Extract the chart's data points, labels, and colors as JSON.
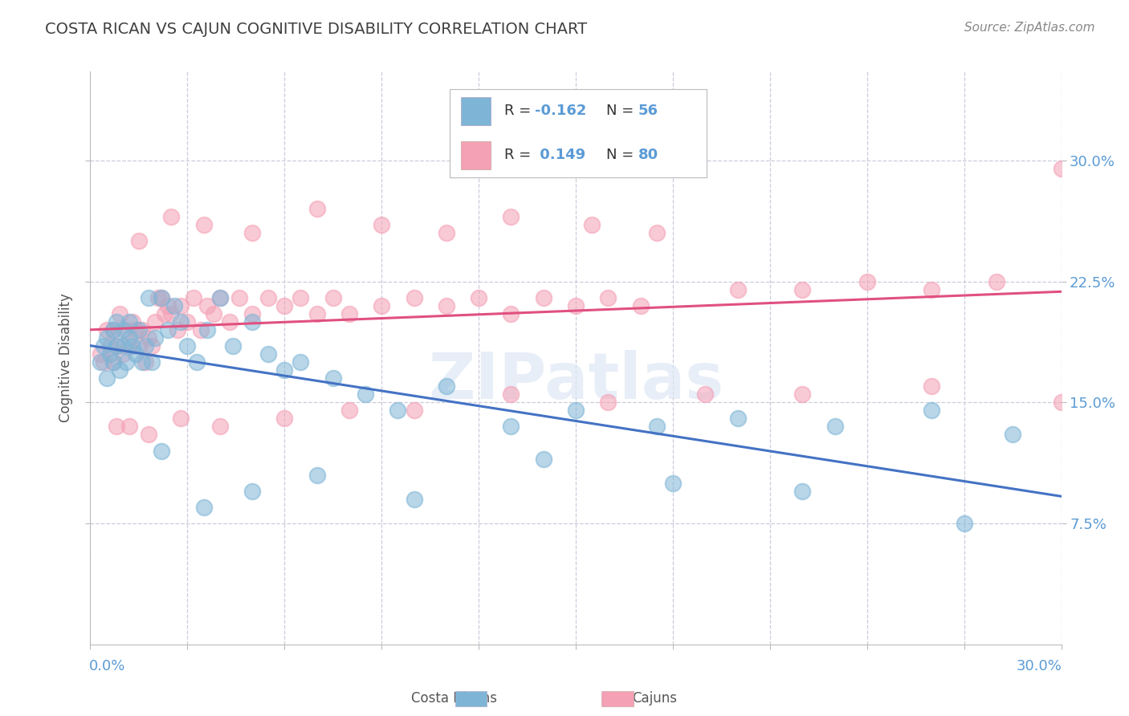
{
  "title": "COSTA RICAN VS CAJUN COGNITIVE DISABILITY CORRELATION CHART",
  "source": "Source: ZipAtlas.com",
  "ylabel": "Cognitive Disability",
  "ylabel_tick_vals": [
    0.075,
    0.15,
    0.225,
    0.3
  ],
  "ylabel_tick_labels": [
    "7.5%",
    "15.0%",
    "22.5%",
    "30.0%"
  ],
  "xmin": 0.0,
  "xmax": 0.3,
  "ymin": 0.0,
  "ymax": 0.355,
  "color_blue": "#7EB5D6",
  "color_pink": "#F4A0B5",
  "line_blue": "#4472C4",
  "line_pink": "#E05080",
  "background": "#FFFFFF",
  "watermark": "ZIPatlas",
  "title_color": "#404040",
  "title_fontsize": 14,
  "axis_label_color": "#5B9BD5",
  "grid_color": "#CCCCDD",
  "legend_r1_val": "-0.162",
  "legend_n1_val": "56",
  "legend_r2_val": "0.149",
  "legend_n2_val": "80",
  "cr_x": [
    0.003,
    0.004,
    0.005,
    0.005,
    0.006,
    0.007,
    0.007,
    0.008,
    0.008,
    0.009,
    0.01,
    0.01,
    0.011,
    0.012,
    0.012,
    0.013,
    0.014,
    0.015,
    0.016,
    0.017,
    0.018,
    0.019,
    0.02,
    0.022,
    0.024,
    0.026,
    0.028,
    0.03,
    0.033,
    0.036,
    0.04,
    0.044,
    0.05,
    0.055,
    0.06,
    0.065,
    0.075,
    0.085,
    0.095,
    0.11,
    0.13,
    0.15,
    0.175,
    0.2,
    0.23,
    0.26,
    0.285,
    0.022,
    0.035,
    0.05,
    0.07,
    0.1,
    0.14,
    0.18,
    0.22,
    0.27
  ],
  "cr_y": [
    0.175,
    0.185,
    0.165,
    0.19,
    0.18,
    0.175,
    0.195,
    0.185,
    0.2,
    0.17,
    0.185,
    0.195,
    0.175,
    0.19,
    0.2,
    0.185,
    0.18,
    0.195,
    0.175,
    0.185,
    0.215,
    0.175,
    0.19,
    0.215,
    0.195,
    0.21,
    0.2,
    0.185,
    0.175,
    0.195,
    0.215,
    0.185,
    0.2,
    0.18,
    0.17,
    0.175,
    0.165,
    0.155,
    0.145,
    0.16,
    0.135,
    0.145,
    0.135,
    0.14,
    0.135,
    0.145,
    0.13,
    0.12,
    0.085,
    0.095,
    0.105,
    0.09,
    0.115,
    0.1,
    0.095,
    0.075
  ],
  "cj_x": [
    0.003,
    0.004,
    0.005,
    0.006,
    0.007,
    0.007,
    0.008,
    0.009,
    0.01,
    0.011,
    0.012,
    0.013,
    0.014,
    0.015,
    0.016,
    0.017,
    0.018,
    0.019,
    0.02,
    0.021,
    0.022,
    0.023,
    0.024,
    0.025,
    0.027,
    0.028,
    0.03,
    0.032,
    0.034,
    0.036,
    0.038,
    0.04,
    0.043,
    0.046,
    0.05,
    0.055,
    0.06,
    0.065,
    0.07,
    0.075,
    0.08,
    0.09,
    0.1,
    0.11,
    0.12,
    0.13,
    0.14,
    0.15,
    0.16,
    0.17,
    0.015,
    0.025,
    0.035,
    0.05,
    0.07,
    0.09,
    0.11,
    0.13,
    0.155,
    0.175,
    0.2,
    0.22,
    0.24,
    0.26,
    0.28,
    0.3,
    0.008,
    0.012,
    0.018,
    0.028,
    0.04,
    0.06,
    0.08,
    0.1,
    0.13,
    0.16,
    0.19,
    0.22,
    0.26,
    0.3
  ],
  "cj_y": [
    0.18,
    0.175,
    0.195,
    0.185,
    0.175,
    0.195,
    0.185,
    0.205,
    0.18,
    0.195,
    0.185,
    0.2,
    0.195,
    0.185,
    0.195,
    0.175,
    0.19,
    0.185,
    0.2,
    0.215,
    0.215,
    0.205,
    0.21,
    0.205,
    0.195,
    0.21,
    0.2,
    0.215,
    0.195,
    0.21,
    0.205,
    0.215,
    0.2,
    0.215,
    0.205,
    0.215,
    0.21,
    0.215,
    0.205,
    0.215,
    0.205,
    0.21,
    0.215,
    0.21,
    0.215,
    0.205,
    0.215,
    0.21,
    0.215,
    0.21,
    0.25,
    0.265,
    0.26,
    0.255,
    0.27,
    0.26,
    0.255,
    0.265,
    0.26,
    0.255,
    0.22,
    0.22,
    0.225,
    0.22,
    0.225,
    0.295,
    0.135,
    0.135,
    0.13,
    0.14,
    0.135,
    0.14,
    0.145,
    0.145,
    0.155,
    0.15,
    0.155,
    0.155,
    0.16,
    0.15
  ]
}
